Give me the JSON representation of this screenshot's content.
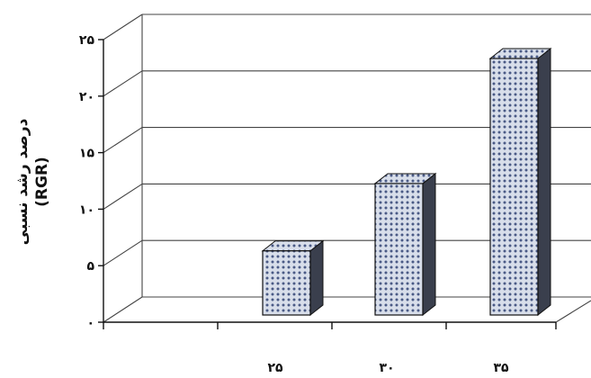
{
  "chart_data": {
    "type": "bar",
    "title": "",
    "xlabel": "",
    "ylabel": "درصد رشد نسبی",
    "ylabel_sub": "(RGR)",
    "categories": [
      "۲۵",
      "۳۰",
      "۳۵"
    ],
    "values": [
      6,
      12.3,
      24
    ],
    "ylim": [
      0,
      25
    ],
    "yticks": [
      0,
      5,
      10,
      15,
      20,
      25
    ],
    "ytick_labels": [
      "۰",
      "۵",
      "۱۰",
      "۱۵",
      "۲۰",
      "۲۵"
    ],
    "grid": true,
    "style": "3d",
    "colors": {
      "bar_face": "#d8deea",
      "bar_dot": "#4a5a86",
      "bar_side": "#3a3f4d",
      "bar_top": "#9aa5c2"
    }
  }
}
